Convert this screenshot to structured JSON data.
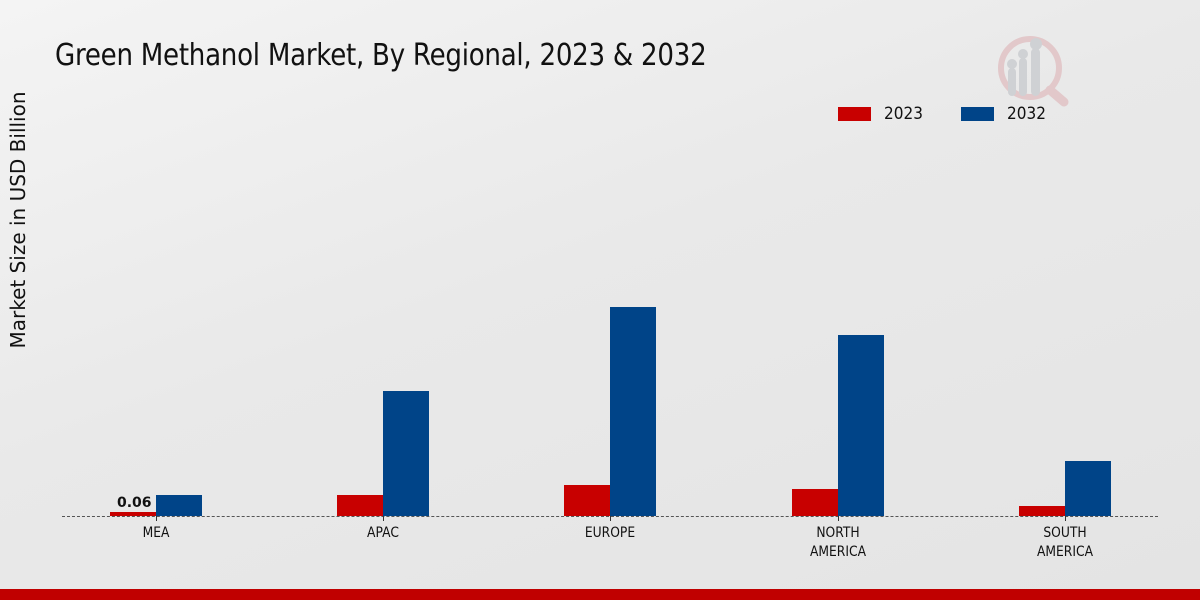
{
  "chart_data": {
    "type": "bar",
    "title": "Green Methanol Market, By Regional, 2023 & 2032",
    "xlabel": "",
    "ylabel": "Market Size in USD Billion",
    "categories": [
      "MEA",
      "APAC",
      "EUROPE",
      "NORTH\nAMERICA",
      "SOUTH\nAMERICA"
    ],
    "series": [
      {
        "name": "2023",
        "color": "#c80000",
        "values": [
          0.06,
          0.32,
          0.47,
          0.41,
          0.15
        ]
      },
      {
        "name": "2032",
        "color": "#004488",
        "values": [
          0.32,
          1.88,
          3.14,
          2.72,
          0.83
        ]
      }
    ],
    "annotations": [
      {
        "category": "MEA",
        "series": "2023",
        "text": "0.06"
      }
    ],
    "legend_position": "top-right",
    "grid": false,
    "ylim": [
      0,
      3.5
    ]
  },
  "header": {
    "title": "Green Methanol Market, By Regional, 2023 & 2032"
  },
  "legend": {
    "items": [
      {
        "label": "2023",
        "color": "#c80000"
      },
      {
        "label": "2032",
        "color": "#004488"
      }
    ]
  },
  "axis": {
    "ylabel": "Market Size in USD Billion",
    "xlabels": [
      "MEA",
      "APAC",
      "EUROPE",
      "NORTH\nAMERICA",
      "SOUTH\nAMERICA"
    ]
  },
  "data_labels": {
    "mea_2023": "0.06"
  },
  "icons": {
    "logo": "magnifier-bar-chart-logo-icon"
  },
  "colors": {
    "accent_red": "#c80000",
    "accent_blue": "#004488",
    "footer_bar": "#c00000"
  }
}
